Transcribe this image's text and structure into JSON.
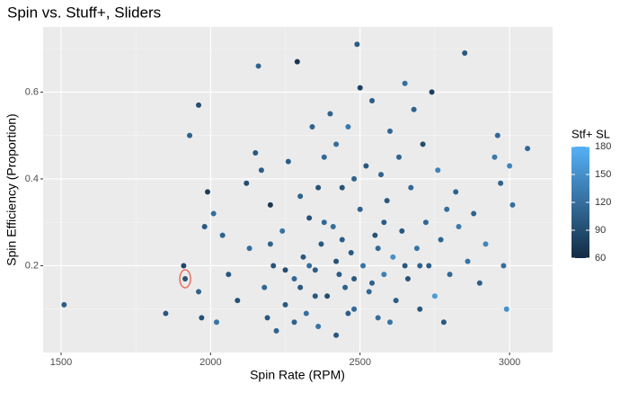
{
  "chart_data": {
    "type": "scatter",
    "title": "Spin vs. Stuff+, Sliders",
    "x_label": "Spin Rate (RPM)",
    "y_label": "Spin Efficiency (Proportion)",
    "legend_title": "Stf+ SL",
    "xlim": [
      1440,
      3144
    ],
    "ylim": [
      0,
      0.75
    ],
    "xticks": [
      1500,
      2000,
      2500,
      3000
    ],
    "yticks": [
      0.2,
      0.4,
      0.6
    ],
    "grid": true,
    "low_color": "#132B43",
    "high_color": "#56B1F7",
    "clim": [
      60,
      180
    ],
    "cticks": [
      60,
      90,
      120,
      150,
      180
    ],
    "highlight": {
      "x": 1915,
      "y": 0.17,
      "color": "#e8715f"
    },
    "x": [
      1510,
      1850,
      1915,
      1910,
      1930,
      1960,
      1990,
      1980,
      2010,
      1960,
      1970,
      2020,
      2040,
      2060,
      2090,
      2120,
      2150,
      2160,
      2130,
      2170,
      2180,
      2190,
      2200,
      2210,
      2220,
      2240,
      2250,
      2260,
      2280,
      2290,
      2300,
      2310,
      2320,
      2330,
      2340,
      2350,
      2360,
      2370,
      2380,
      2390,
      2400,
      2410,
      2420,
      2430,
      2440,
      2450,
      2460,
      2470,
      2480,
      2490,
      2500,
      2500,
      2510,
      2520,
      2530,
      2540,
      2550,
      2560,
      2570,
      2580,
      2590,
      2600,
      2610,
      2620,
      2630,
      2640,
      2650,
      2660,
      2670,
      2680,
      2690,
      2700,
      2710,
      2720,
      2730,
      2740,
      2750,
      2760,
      2770,
      2780,
      2790,
      2800,
      2820,
      2830,
      2850,
      2860,
      2880,
      2900,
      2920,
      2950,
      2960,
      2970,
      2980,
      2990,
      3000,
      3010,
      3060,
      2350,
      2280,
      2420,
      2460,
      2380,
      2300,
      2540,
      2600,
      2650,
      2440,
      2200,
      2250,
      2330,
      2480,
      2560,
      2700,
      2580,
      2360,
      2480,
      2420
    ],
    "values": [
      0.11,
      0.09,
      0.17,
      0.2,
      0.5,
      0.57,
      0.37,
      0.29,
      0.32,
      0.14,
      0.08,
      0.07,
      0.27,
      0.18,
      0.12,
      0.39,
      0.46,
      0.66,
      0.24,
      0.42,
      0.15,
      0.08,
      0.34,
      0.2,
      0.05,
      0.28,
      0.11,
      0.44,
      0.17,
      0.67,
      0.36,
      0.22,
      0.09,
      0.31,
      0.52,
      0.19,
      0.06,
      0.25,
      0.45,
      0.13,
      0.55,
      0.29,
      0.04,
      0.18,
      0.38,
      0.15,
      0.52,
      0.23,
      0.1,
      0.71,
      0.61,
      0.33,
      0.2,
      0.43,
      0.14,
      0.58,
      0.27,
      0.08,
      0.41,
      0.18,
      0.35,
      0.51,
      0.22,
      0.12,
      0.45,
      0.28,
      0.62,
      0.17,
      0.38,
      0.56,
      0.24,
      0.1,
      0.48,
      0.3,
      0.2,
      0.6,
      0.13,
      0.42,
      0.26,
      0.07,
      0.33,
      0.18,
      0.37,
      0.29,
      0.69,
      0.21,
      0.32,
      0.16,
      0.25,
      0.45,
      0.5,
      0.39,
      0.2,
      0.1,
      0.43,
      0.34,
      0.47,
      0.13,
      0.07,
      0.21,
      0.09,
      0.3,
      0.15,
      0.16,
      0.07,
      0.2,
      0.26,
      0.25,
      0.19,
      0.2,
      0.17,
      0.24,
      0.2,
      0.3,
      0.38,
      0.4,
      0.48
    ],
    "stuff": [
      105,
      100,
      95,
      85,
      110,
      90,
      75,
      100,
      120,
      110,
      95,
      125,
      110,
      100,
      95,
      90,
      100,
      110,
      120,
      105,
      115,
      100,
      70,
      95,
      110,
      125,
      100,
      105,
      115,
      70,
      110,
      100,
      120,
      95,
      110,
      105,
      125,
      100,
      115,
      90,
      110,
      120,
      100,
      105,
      95,
      110,
      130,
      100,
      115,
      105,
      80,
      110,
      125,
      100,
      115,
      105,
      95,
      120,
      110,
      135,
      100,
      115,
      150,
      105,
      110,
      100,
      120,
      95,
      115,
      110,
      125,
      100,
      90,
      115,
      105,
      80,
      160,
      140,
      110,
      100,
      120,
      115,
      110,
      130,
      100,
      125,
      110,
      105,
      140,
      130,
      115,
      110,
      120,
      150,
      140,
      120,
      115,
      100,
      110,
      95,
      105,
      115,
      100,
      110,
      125,
      100,
      105,
      110,
      90,
      120,
      100,
      115,
      110,
      105,
      95,
      110,
      120
    ]
  }
}
